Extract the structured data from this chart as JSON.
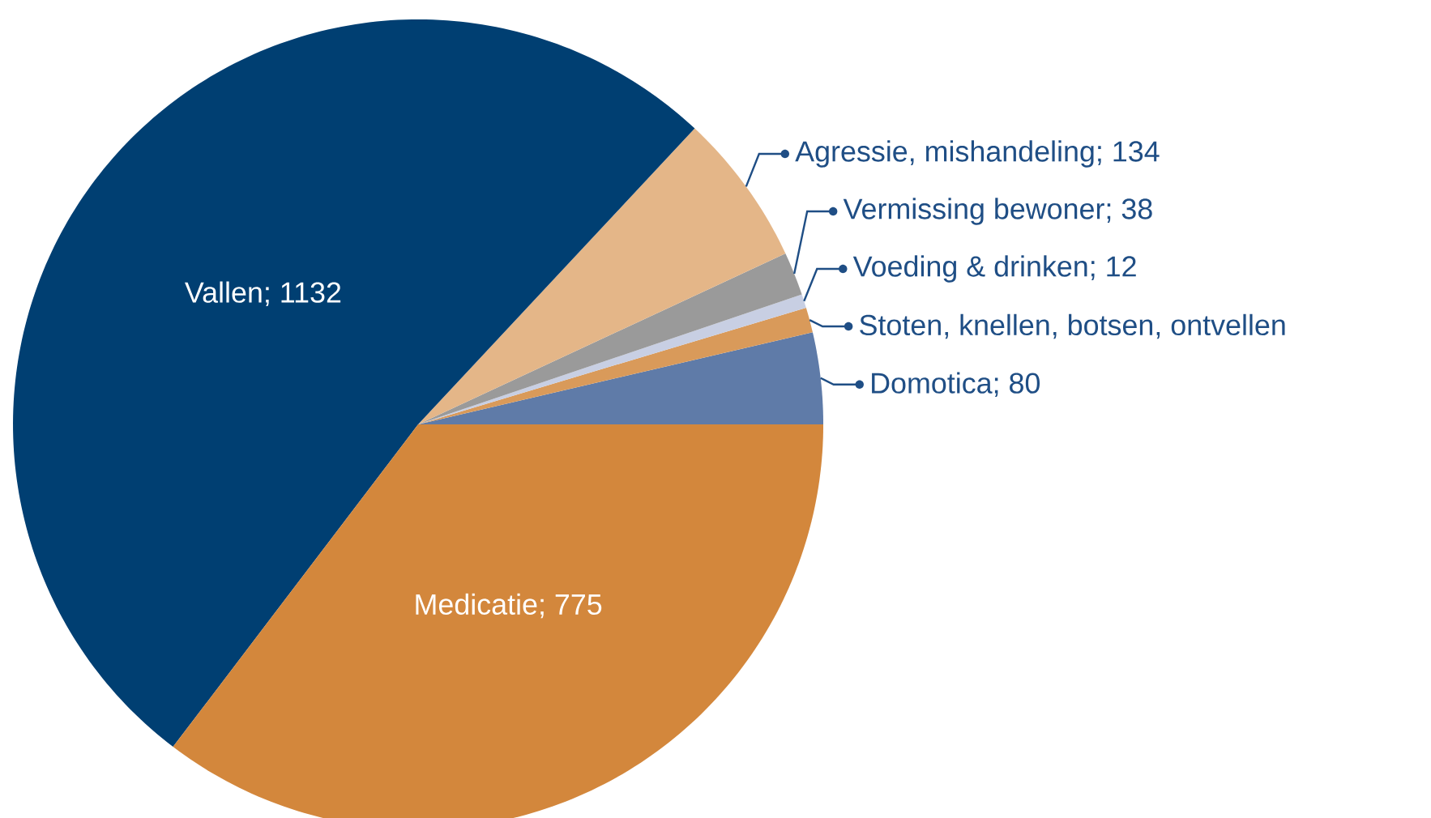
{
  "chart_data": {
    "type": "pie",
    "categories": [
      "Domotica; 80",
      "Stoten, knellen, botsen, ontvellen",
      "Voeding & drinken; 12",
      "Vermissing bewoner; 38",
      "Agressie, mishandeling; 134",
      "Vallen; 1132",
      "Medicatie; 775"
    ],
    "values": [
      80,
      22,
      12,
      38,
      134,
      1132,
      775
    ],
    "colors": [
      "#5f7ba8",
      "#d99a5a",
      "#c8cfe3",
      "#9a9a9a",
      "#e4b688",
      "#003f72",
      "#d3873c"
    ]
  }
}
